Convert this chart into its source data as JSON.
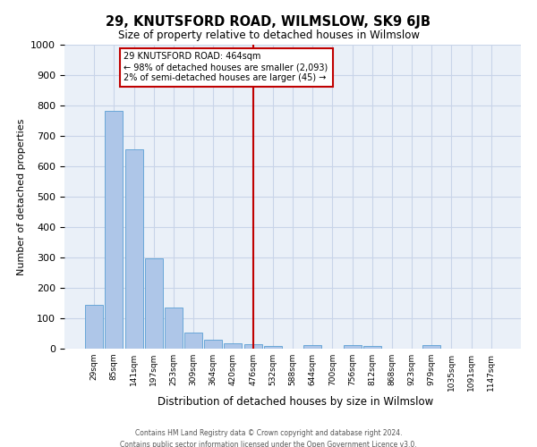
{
  "title": "29, KNUTSFORD ROAD, WILMSLOW, SK9 6JB",
  "subtitle": "Size of property relative to detached houses in Wilmslow",
  "xlabel": "Distribution of detached houses by size in Wilmslow",
  "ylabel": "Number of detached properties",
  "categories": [
    "29sqm",
    "85sqm",
    "141sqm",
    "197sqm",
    "253sqm",
    "309sqm",
    "364sqm",
    "420sqm",
    "476sqm",
    "532sqm",
    "588sqm",
    "644sqm",
    "700sqm",
    "756sqm",
    "812sqm",
    "868sqm",
    "923sqm",
    "979sqm",
    "1035sqm",
    "1091sqm",
    "1147sqm"
  ],
  "values": [
    143,
    783,
    657,
    296,
    135,
    54,
    28,
    18,
    14,
    8,
    0,
    12,
    0,
    12,
    8,
    0,
    0,
    12,
    0,
    0,
    0
  ],
  "bar_color": "#aec6e8",
  "bar_edge_color": "#5a9fd4",
  "vline_index": 8,
  "vline_color": "#c00000",
  "annotation_line1": "29 KNUTSFORD ROAD: 464sqm",
  "annotation_line2": "← 98% of detached houses are smaller (2,093)",
  "annotation_line3": "2% of semi-detached houses are larger (45) →",
  "annotation_box_color": "#c00000",
  "ylim": [
    0,
    1000
  ],
  "yticks": [
    0,
    100,
    200,
    300,
    400,
    500,
    600,
    700,
    800,
    900,
    1000
  ],
  "grid_color": "#c8d4e8",
  "background_color": "#eaf0f8",
  "footer_line1": "Contains HM Land Registry data © Crown copyright and database right 2024.",
  "footer_line2": "Contains public sector information licensed under the Open Government Licence v3.0."
}
